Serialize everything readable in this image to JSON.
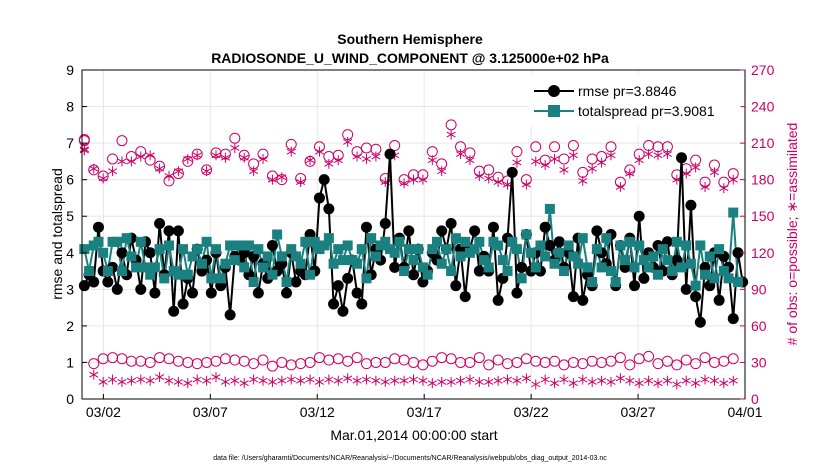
{
  "chart_data": {
    "type": "line",
    "title": "Southern Hemisphere",
    "subtitle": "RADIOSONDE_U_WIND_COMPONENT @ 3.125000e+02 hPa",
    "xlabel": "Mar.01,2014 00:00:00 start",
    "ylabel": "rmse and totalspread",
    "y2label": "# of obs: o=possible; ∗=assimilated",
    "footnote": "data file: /Users/gharamti/Documents/NCAR/Reanalysis/~/Documents/NCAR/Reanalysis/webpub/obs_diag_output_2014-03.nc",
    "xlim": [
      1.0,
      32.0
    ],
    "ylim": [
      0,
      9
    ],
    "y2lim": [
      0,
      270
    ],
    "x_ticks": [
      2,
      7,
      12,
      17,
      22,
      27,
      32
    ],
    "x_tick_labels": [
      "03/02",
      "03/07",
      "03/12",
      "03/17",
      "03/22",
      "03/27",
      "04/01"
    ],
    "y_ticks": [
      0,
      1,
      2,
      3,
      4,
      5,
      6,
      7,
      8,
      9
    ],
    "y2_ticks": [
      0,
      30,
      60,
      90,
      120,
      150,
      180,
      210,
      240,
      270
    ],
    "grid": true,
    "legend_position": "top-right",
    "colors": {
      "rmse": "#000000",
      "spread": "#1a8080",
      "obs": "#cc0066"
    },
    "series": [
      {
        "name": "rmse pr=3.8846",
        "axis": "left",
        "values": [
          3.1,
          3.4,
          3.2,
          4.7,
          3.5,
          3.2,
          3.6,
          3.0,
          4.0,
          3.4,
          4.4,
          3.8,
          3.0,
          4.3,
          4.0,
          2.9,
          4.8,
          3.4,
          4.6,
          2.4,
          4.6,
          2.6,
          3.3,
          2.9,
          4.1,
          3.5,
          3.8,
          2.9,
          4.0,
          3.1,
          3.6,
          2.3,
          3.9,
          3.8,
          4.0,
          3.4,
          3.9,
          2.9,
          3.7,
          3.3,
          4.2,
          3.5,
          3.7,
          2.9,
          4.0,
          3.2,
          3.5,
          3.4,
          4.5,
          3.5,
          5.5,
          6.0,
          5.2,
          2.6,
          3.1,
          2.4,
          3.3,
          3.8,
          2.9,
          2.6,
          4.7,
          3.4,
          4.1,
          3.8,
          4.8,
          6.7,
          3.6,
          4.4,
          3.6,
          4.6,
          3.4,
          4.1,
          3.2,
          3.5,
          4.0,
          3.8,
          4.6,
          4.1,
          4.8,
          3.1,
          4.1,
          2.8,
          4.1,
          4.6,
          3.5,
          3.9,
          3.5,
          4.7,
          2.7,
          3.3,
          4.4,
          6.2,
          2.9,
          3.6,
          4.5,
          3.5,
          4.0,
          3.5,
          4.7,
          4.2,
          3.8,
          4.3,
          3.6,
          4.0,
          2.8,
          4.4,
          2.7,
          3.4,
          3.1,
          4.6,
          4.0,
          3.7,
          4.5,
          3.1,
          4.2,
          3.6,
          4.4,
          3.1,
          5.0,
          3.3,
          4.0,
          3.6,
          4.2,
          3.5,
          4.3,
          3.4,
          3.8,
          6.6,
          3.0,
          5.3,
          2.8,
          2.1,
          3.6,
          3.1,
          4.0,
          2.7,
          3.9,
          3.6,
          2.2,
          4.0,
          3.2
        ]
      },
      {
        "name": "totalspread pr=3.9081",
        "axis": "left",
        "values": [
          4.1,
          3.5,
          4.2,
          4.3,
          4.0,
          3.5,
          4.3,
          4.3,
          3.5,
          4.4,
          3.9,
          3.6,
          4.3,
          3.6,
          3.4,
          3.6,
          4.1,
          3.3,
          4.2,
          3.5,
          3.4,
          4.1,
          3.4,
          3.9,
          4.1,
          3.7,
          4.3,
          3.3,
          4.1,
          3.3,
          3.7,
          4.2,
          3.8,
          4.2,
          3.6,
          4.2,
          3.2,
          4.1,
          3.6,
          3.9,
          3.4,
          4.5,
          3.9,
          3.2,
          4.1,
          3.9,
          3.7,
          4.3,
          3.4,
          4.3,
          4.1,
          4.2,
          4.4,
          3.7,
          4.1,
          3.8,
          4.2,
          3.8,
          3.7,
          4.1,
          3.3,
          4.4,
          3.9,
          4.2,
          4.3,
          4.1,
          4.0,
          4.3,
          3.5,
          4.1,
          3.8,
          4.1,
          3.6,
          3.4,
          4.1,
          4.3,
          3.7,
          4.1,
          3.5,
          4.4,
          3.9,
          4.3,
          4.0,
          4.1,
          4.3,
          3.8,
          3.6,
          4.3,
          4.2,
          3.8,
          3.5,
          4.3,
          4.1,
          3.3,
          4.5,
          4.0,
          3.6,
          4.2,
          3.9,
          5.2,
          3.7,
          4.0,
          3.5,
          4.2,
          3.9,
          3.7,
          4.4,
          3.6,
          3.2,
          4.1,
          3.6,
          4.4,
          3.5,
          3.2,
          4.2,
          3.8,
          4.3,
          3.6,
          4.2,
          3.8,
          3.6,
          3.9,
          3.4,
          4.1,
          3.8,
          3.5,
          4.3,
          3.6,
          4.2,
          3.7,
          3.1,
          4.2,
          3.4,
          3.9,
          3.3,
          4.1,
          3.5,
          3.3,
          5.1,
          3.2
        ]
      },
      {
        "name": "possible",
        "axis": "right",
        "marker": "o",
        "values": [
          213,
          33,
          29,
          32,
          33,
          30,
          34,
          28,
          33,
          32,
          31,
          35,
          31,
          33,
          30,
          32,
          34,
          27,
          33,
          30,
          31,
          34,
          30,
          32,
          29,
          33,
          30,
          34,
          31,
          28,
          33,
          30,
          32,
          27,
          31,
          34,
          29,
          30,
          32,
          31,
          27,
          33,
          30,
          31,
          28,
          32,
          29,
          33,
          30,
          31,
          34,
          29,
          32,
          28,
          33,
          30,
          31,
          28,
          34,
          32,
          29,
          33,
          30,
          31,
          30,
          29,
          33,
          29,
          32,
          31,
          30,
          33,
          28,
          30,
          31,
          28,
          34,
          31,
          33,
          29,
          30,
          32,
          30,
          31,
          34,
          31,
          28,
          30,
          32,
          32,
          29,
          33,
          30,
          31,
          33,
          29,
          31,
          32,
          30,
          28,
          31,
          33,
          28,
          31,
          30,
          32,
          29,
          29,
          31,
          33,
          30,
          32,
          31,
          29,
          34,
          30,
          28,
          31,
          33,
          30,
          35,
          30,
          29,
          32,
          31,
          34,
          28,
          30,
          32,
          33,
          29,
          31,
          34,
          28,
          30,
          33,
          31,
          28,
          33,
          30
        ]
      },
      {
        "name": "assimilated",
        "axis": "right",
        "marker": "*",
        "values": [
          205,
          16,
          20,
          12,
          14,
          14,
          16,
          15,
          14,
          16,
          15,
          17,
          16,
          14,
          15,
          13,
          18,
          14,
          15,
          16,
          14,
          17,
          13,
          15,
          16,
          14,
          15,
          13,
          18,
          15,
          14,
          16,
          15,
          14,
          13,
          17,
          16,
          14,
          15,
          16,
          14,
          12,
          15,
          14,
          16,
          13,
          15,
          14,
          16,
          15,
          14,
          15,
          16,
          13,
          15,
          14,
          17,
          13,
          15,
          14,
          16,
          12,
          15,
          14,
          14,
          16,
          15,
          13,
          15,
          14,
          16,
          12,
          15,
          16,
          13,
          15,
          14,
          16,
          14,
          13,
          15,
          12,
          16,
          15,
          14,
          13,
          14,
          16,
          15,
          13,
          16,
          14,
          15,
          13,
          17,
          15,
          12,
          14,
          16,
          15,
          13,
          15,
          16,
          14,
          13,
          15,
          16,
          12,
          14,
          16,
          15,
          13,
          14,
          15,
          17,
          12,
          15,
          16,
          13,
          14,
          15,
          16,
          13,
          14,
          15,
          16,
          12,
          14,
          15,
          17,
          13,
          15,
          16,
          14,
          15,
          16,
          13,
          14,
          15,
          12
        ]
      },
      {
        "name": "possible-upper",
        "axis": "right",
        "marker": "o",
        "values": [
          212,
          213,
          188,
          196,
          183,
          193,
          197,
          190,
          212,
          201,
          199,
          200,
          203,
          212,
          196,
          202,
          191,
          201,
          179,
          176,
          185,
          202,
          195,
          207,
          201,
          209,
          188,
          196,
          202,
          206,
          201,
          198,
          214,
          201,
          200,
          213,
          193,
          196,
          201,
          201,
          183,
          178,
          180,
          200,
          209,
          189,
          181,
          208,
          195,
          210,
          207,
          195,
          199,
          219,
          200,
          211,
          217,
          201,
          203,
          200,
          206,
          191,
          205,
          184,
          181,
          201,
          208,
          193,
          180,
          222,
          184,
          205,
          184,
          211,
          203,
          203,
          193,
          191,
          225,
          196,
          207,
          216,
          202,
          184,
          187,
          199,
          188,
          210,
          182,
          181,
          179,
          189,
          203,
          208,
          180,
          209,
          207,
          194,
          196,
          213,
          207,
          193,
          197,
          197,
          208,
          194,
          186,
          208,
          197,
          189,
          199,
          204,
          207,
          199,
          178,
          193,
          188,
          194,
          201,
          197,
          208,
          199,
          207,
          183,
          207,
          193,
          184,
          174,
          189,
          185,
          196,
          176,
          178,
          180,
          192,
          193,
          178,
          195,
          185,
          194
        ]
      },
      {
        "name": "assimilated-upper",
        "axis": "right",
        "marker": "*",
        "values": [
          204,
          204,
          189,
          184,
          181,
          186,
          187,
          186,
          195,
          196,
          195,
          196,
          199,
          220,
          200,
          202,
          189,
          189,
          183,
          180,
          187,
          196,
          197,
          201,
          200,
          201,
          187,
          197,
          200,
          202,
          198,
          196,
          206,
          200,
          198,
          205,
          187,
          193,
          197,
          195,
          180,
          176,
          182,
          197,
          203,
          188,
          178,
          203,
          196,
          207,
          203,
          195,
          193,
          207,
          196,
          206,
          211,
          196,
          199,
          196,
          197,
          187,
          199,
          181,
          178,
          195,
          200,
          195,
          177,
          207,
          180,
          196,
          180,
          207,
          196,
          196,
          187,
          188,
          217,
          193,
          201,
          213,
          196,
          180,
          183,
          192,
          181,
          201,
          178,
          178,
          176,
          187,
          194,
          199,
          176,
          202,
          195,
          190,
          192,
          205,
          197,
          188,
          188,
          194,
          200,
          189,
          179,
          200,
          189,
          183,
          194,
          197,
          200,
          192,
          174,
          188,
          185,
          191,
          196,
          193,
          201,
          190,
          200,
          179,
          201,
          187,
          180,
          171,
          185,
          180,
          190,
          171,
          174,
          177,
          186,
          186,
          173,
          190,
          180,
          188
        ]
      }
    ]
  }
}
